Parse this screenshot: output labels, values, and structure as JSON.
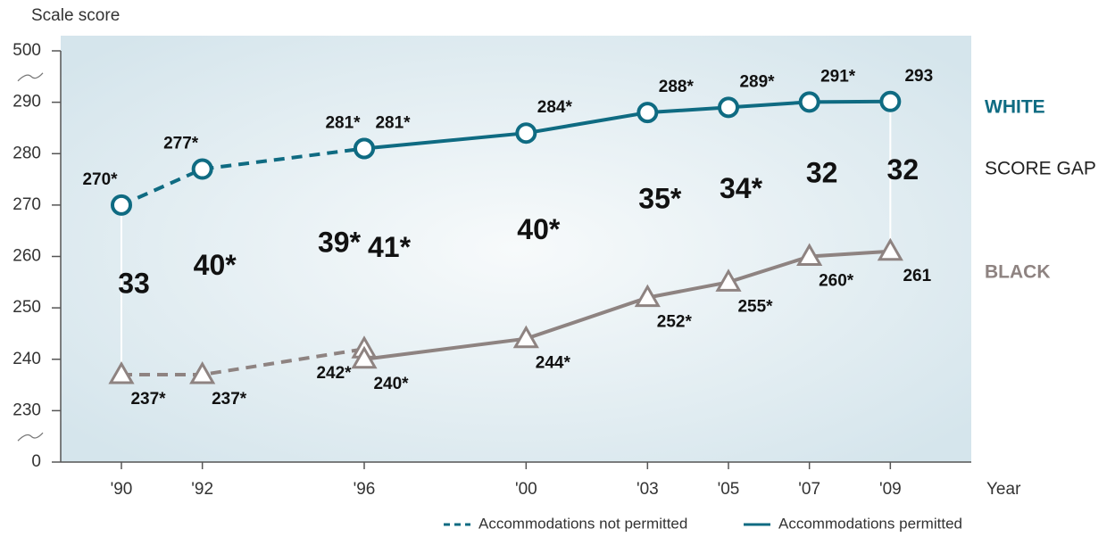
{
  "chart_data": {
    "type": "line",
    "y_label": "Scale score",
    "x_label": "Year",
    "xlim": [
      1988.5,
      2011
    ],
    "xticks": [
      {
        "value": 1990,
        "label": "'90"
      },
      {
        "value": 1992,
        "label": "'92"
      },
      {
        "value": 1996,
        "label": "'96"
      },
      {
        "value": 2000,
        "label": "'00"
      },
      {
        "value": 2003,
        "label": "'03"
      },
      {
        "value": 2005,
        "label": "'05"
      },
      {
        "value": 2007,
        "label": "'07"
      },
      {
        "value": 2009,
        "label": "'09"
      }
    ],
    "ylim": [
      0,
      500
    ],
    "yticks": [
      0,
      230,
      240,
      250,
      260,
      270,
      280,
      290,
      500
    ],
    "axis_break": true,
    "legend": [
      {
        "label": "Accommodations not permitted",
        "dashed": true
      },
      {
        "label": "Accommodations permitted",
        "dashed": false
      }
    ],
    "groups": [
      {
        "name": "WHITE",
        "color": "#0f6b82",
        "marker": "circle",
        "label_side": "above",
        "series": [
          {
            "dashed": true,
            "x": [
              1990,
              1992,
              1996
            ],
            "values": [
              270,
              277,
              281
            ],
            "value_labels": [
              "270*",
              "277*",
              "281*"
            ]
          },
          {
            "dashed": false,
            "x": [
              1996,
              2000,
              2003,
              2005,
              2007,
              2009
            ],
            "values": [
              281,
              284,
              288,
              289,
              291,
              293
            ],
            "value_labels": [
              "281*",
              "284*",
              "288*",
              "289*",
              "291*",
              "293"
            ]
          }
        ]
      },
      {
        "name": "BLACK",
        "color": "#8e8381",
        "marker": "triangle",
        "label_side": "below",
        "series": [
          {
            "dashed": true,
            "x": [
              1990,
              1992,
              1996
            ],
            "values": [
              237,
              237,
              242
            ],
            "value_labels": [
              "237*",
              "237*",
              "242*"
            ]
          },
          {
            "dashed": false,
            "x": [
              1996,
              2000,
              2003,
              2005,
              2007,
              2009
            ],
            "values": [
              240,
              244,
              252,
              255,
              260,
              261
            ],
            "value_labels": [
              "240*",
              "244*",
              "252*",
              "255*",
              "260*",
              "261"
            ]
          }
        ]
      }
    ],
    "score_gap": {
      "name": "SCORE GAP",
      "x": [
        1990,
        1992,
        1996,
        1996,
        2000,
        2003,
        2005,
        2007,
        2009
      ],
      "values": [
        33,
        40,
        39,
        41,
        40,
        35,
        34,
        32,
        32
      ],
      "value_labels": [
        "33",
        "40*",
        "39*",
        "41*",
        "40*",
        "35*",
        "34*",
        "32",
        "32"
      ]
    }
  }
}
